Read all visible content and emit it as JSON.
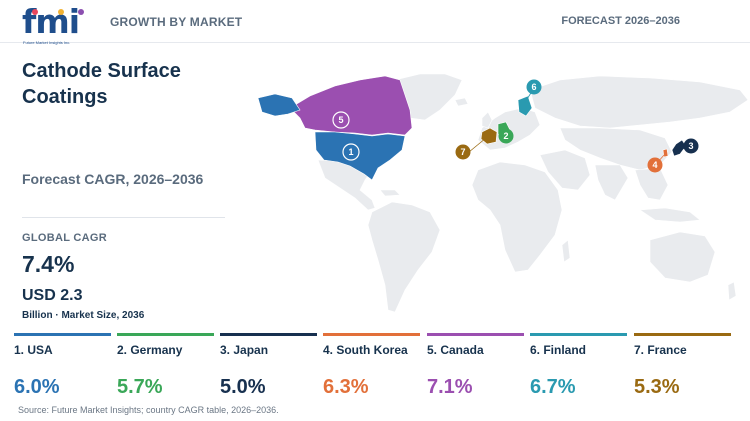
{
  "header": {
    "logo_text": "fmi",
    "logo_tagline": "Future Market Insights Inc.",
    "left_label": "GROWTH BY MARKET",
    "right_label": "FORECAST 2026–2036"
  },
  "summary": {
    "title": "Cathode Surface Coatings",
    "subtitle": "Forecast CAGR, 2026–2036",
    "cagr_label": "GLOBAL CAGR",
    "cagr_value": "7.4%",
    "market_size": "USD 2.3",
    "market_size_note": "Billion · Market Size, 2036"
  },
  "countries": [
    {
      "rank": "1",
      "label": "1. USA",
      "cagr": "6.0%",
      "color": "#2b73b3"
    },
    {
      "rank": "2",
      "label": "2. Germany",
      "cagr": "5.7%",
      "color": "#3aa758"
    },
    {
      "rank": "3",
      "label": "3. Japan",
      "cagr": "5.0%",
      "color": "#17304f"
    },
    {
      "rank": "4",
      "label": "4. South Korea",
      "cagr": "6.3%",
      "color": "#e2703a"
    },
    {
      "rank": "5",
      "label": "5. Canada",
      "cagr": "7.1%",
      "color": "#9b4fb0"
    },
    {
      "rank": "6",
      "label": "6. Finland",
      "cagr": "6.7%",
      "color": "#2a9ab0"
    },
    {
      "rank": "7",
      "label": "7. France",
      "cagr": "5.3%",
      "color": "#9a6a12"
    }
  ],
  "source": "Source: Future Market Insights; country CAGR table, 2026–2036.",
  "colors": {
    "base_land": "#e9ebee",
    "primary_text": "#17324d",
    "muted_text": "#5a6b7d"
  }
}
